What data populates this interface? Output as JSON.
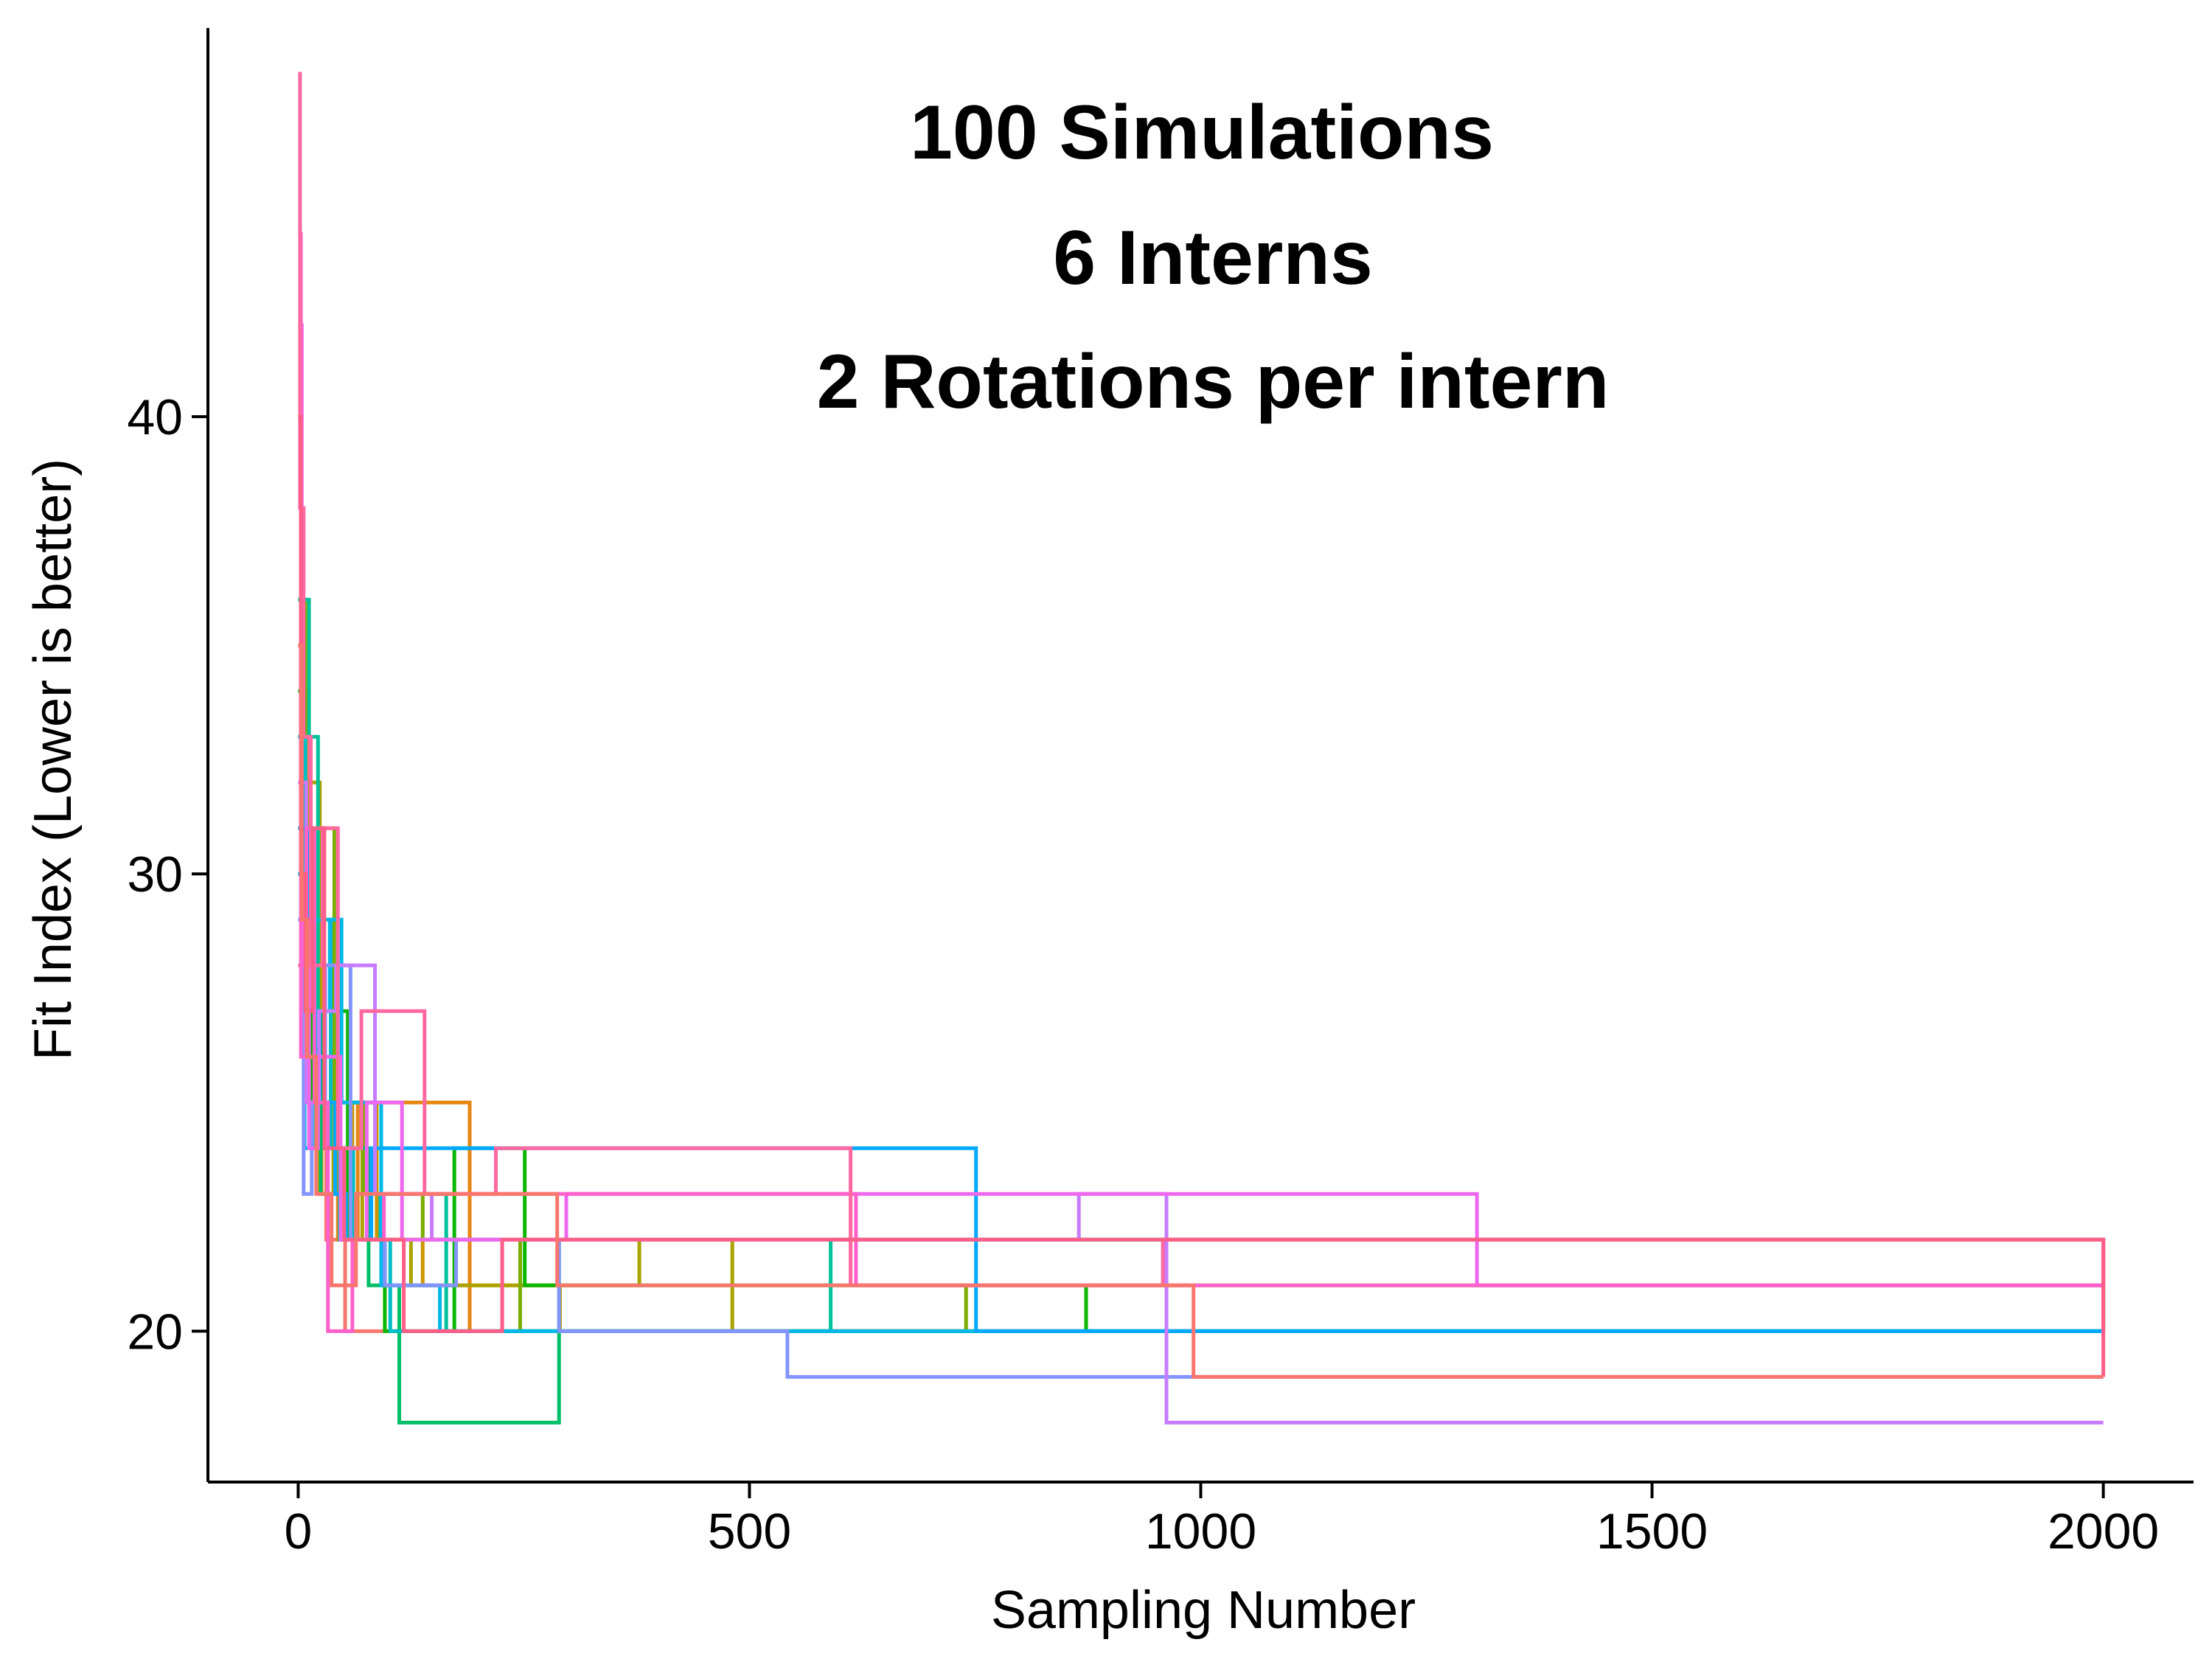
{
  "chart_data": {
    "type": "line",
    "title": "",
    "xlabel": "Sampling Number",
    "ylabel": "Fit Index (Lower is better)",
    "xlim": [
      -100,
      2100
    ],
    "ylim": [
      16.7,
      48.5
    ],
    "x_ticks": [
      0,
      500,
      1000,
      1500,
      2000
    ],
    "x_tick_labels": [
      "0",
      "500",
      "1000",
      "1500",
      "2000"
    ],
    "y_ticks": [
      20,
      30,
      40
    ],
    "y_tick_labels": [
      "20",
      "30",
      "40"
    ],
    "grid": false,
    "legend": "none",
    "annotations": [
      "100 Simulations",
      "6 Interns",
      "2 Rotations per intern"
    ],
    "series": [
      {
        "color": "#F8766D",
        "x": [
          0,
          6,
          11,
          19,
          31,
          52,
          2000
        ],
        "y": [
          28,
          34,
          27,
          24,
          22,
          20,
          20
        ]
      },
      {
        "color": "#E68613",
        "x": [
          0,
          5,
          13,
          26,
          44,
          66,
          190,
          2000
        ],
        "y": [
          31,
          26,
          24,
          23,
          22,
          25,
          20,
          20
        ]
      },
      {
        "color": "#CD9600",
        "x": [
          0,
          7,
          18,
          28,
          43,
          60,
          87,
          138,
          290,
          2000
        ],
        "y": [
          33,
          29,
          30,
          26,
          23,
          25,
          22,
          21,
          20,
          20
        ]
      },
      {
        "color": "#ABA300",
        "x": [
          0,
          5,
          12,
          24,
          39,
          71,
          125,
          378,
          481,
          2000
        ],
        "y": [
          35,
          26,
          32,
          23,
          25,
          22,
          21,
          22,
          20,
          20
        ]
      },
      {
        "color": "#7CAE00",
        "x": [
          0,
          8,
          21,
          40,
          72,
          138,
          246,
          740,
          2000
        ],
        "y": [
          36,
          27,
          31,
          25,
          23,
          22,
          20,
          21,
          20
        ]
      },
      {
        "color": "#0CB702",
        "x": [
          0,
          6,
          14,
          27,
          55,
          96,
          173,
          251,
          873,
          2000
        ],
        "y": [
          34,
          28,
          24,
          27,
          22,
          20,
          24,
          21,
          20,
          20
        ]
      },
      {
        "color": "#00BE67",
        "x": [
          0,
          9,
          25,
          50,
          78,
          112,
          289,
          2000
        ],
        "y": [
          30,
          25,
          23,
          24,
          21,
          18,
          22,
          20
        ]
      },
      {
        "color": "#00C19A",
        "x": [
          0,
          12,
          22,
          46,
          91,
          164,
          590,
          2000
        ],
        "y": [
          36,
          33,
          25,
          22,
          23,
          20,
          22,
          20
        ]
      },
      {
        "color": "#00BFC4",
        "x": [
          0,
          8,
          18,
          36,
          61,
          102,
          2000
        ],
        "y": [
          33,
          26,
          29,
          24,
          22,
          20,
          20
        ]
      },
      {
        "color": "#00B8E7",
        "x": [
          0,
          7,
          19,
          35,
          48,
          92,
          157,
          2000
        ],
        "y": [
          30,
          24,
          27,
          29,
          25,
          21,
          20,
          20
        ]
      },
      {
        "color": "#00A9FF",
        "x": [
          0,
          10,
          24,
          41,
          53,
          81,
          751,
          2000
        ],
        "y": [
          31,
          27,
          25,
          23,
          22,
          24,
          20,
          20
        ]
      },
      {
        "color": "#8494FF",
        "x": [
          0,
          6,
          15,
          30,
          58,
          96,
          175,
          289,
          542,
          2000
        ],
        "y": [
          29,
          23,
          25,
          28,
          22,
          21,
          22,
          20,
          19,
          19
        ]
      },
      {
        "color": "#C77CFF",
        "x": [
          0,
          9,
          23,
          42,
          85,
          148,
          865,
          962,
          2000
        ],
        "y": [
          32,
          25,
          27,
          28,
          23,
          22,
          23,
          18,
          18
        ]
      },
      {
        "color": "#ED68ED",
        "x": [
          0,
          4,
          12,
          22,
          47,
          76,
          115,
          297,
          1306,
          2000
        ],
        "y": [
          42,
          28,
          24,
          26,
          22,
          25,
          22,
          23,
          21,
          22
        ]
      },
      {
        "color": "#FF61CC",
        "x": [
          0,
          3,
          9,
          18,
          33,
          60,
          95,
          618,
          2000
        ],
        "y": [
          44,
          26,
          31,
          25,
          20,
          22,
          23,
          21,
          22
        ]
      },
      {
        "color": "#FF68A1",
        "x": [
          0,
          2,
          6,
          14,
          27,
          44,
          70,
          140,
          219,
          612,
          958,
          2000
        ],
        "y": [
          47.5,
          38,
          33,
          28,
          31,
          24,
          27,
          23,
          24,
          21,
          22,
          20
        ]
      },
      {
        "color": "#FF5E88",
        "x": [
          0,
          3,
          8,
          16,
          29,
          51,
          117,
          226,
          2000
        ],
        "y": [
          40,
          30,
          27,
          31,
          24,
          22,
          20,
          22,
          19
        ]
      },
      {
        "color": "#F8766D",
        "x": [
          0,
          4,
          10,
          20,
          37,
          64,
          287,
          992,
          2000
        ],
        "y": [
          35,
          29,
          26,
          23,
          21,
          23,
          21,
          19,
          19
        ]
      }
    ]
  }
}
